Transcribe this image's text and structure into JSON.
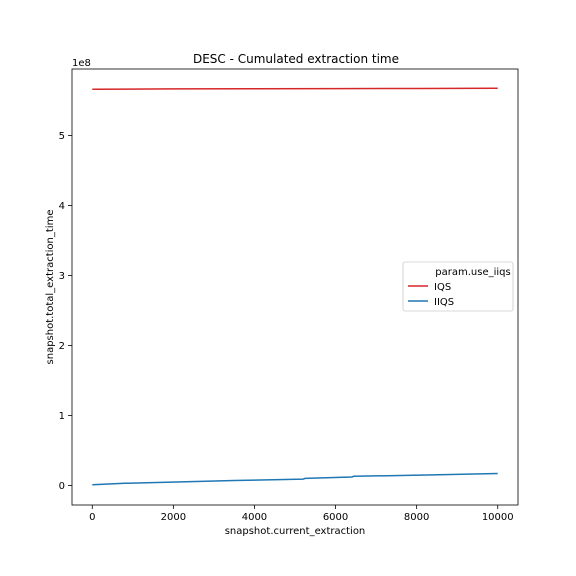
{
  "chart_data": {
    "type": "line",
    "title": "DESC - Cumulated extraction time",
    "xlabel": "snapshot.current_extraction",
    "ylabel": "snapshot.total_extraction_time",
    "y_offset_label": "1e8",
    "xlim": [
      -500,
      10500
    ],
    "ylim": [
      -0.28,
      5.95
    ],
    "x_ticks": [
      0,
      2000,
      4000,
      6000,
      8000,
      10000
    ],
    "x_tick_labels": [
      "0",
      "2000",
      "4000",
      "6000",
      "8000",
      "10000"
    ],
    "y_ticks": [
      0,
      1,
      2,
      3,
      4,
      5
    ],
    "y_tick_labels": [
      "0",
      "1",
      "2",
      "3",
      "4",
      "5"
    ],
    "grid": false,
    "legend": {
      "title": "param.use_iiqs",
      "placement": "center-right"
    },
    "series": [
      {
        "name": "IQS",
        "color": "#d62728",
        "x": [
          0,
          2000,
          4000,
          6000,
          8000,
          10000
        ],
        "y": [
          5.66,
          5.665,
          5.667,
          5.67,
          5.672,
          5.675
        ]
      },
      {
        "name": "IIQS",
        "color": "#1f77b4",
        "x": [
          0,
          800,
          2200,
          3500,
          5200,
          5250,
          6400,
          6450,
          8400,
          10000
        ],
        "y": [
          0.01,
          0.03,
          0.05,
          0.07,
          0.09,
          0.1,
          0.12,
          0.13,
          0.15,
          0.17
        ]
      }
    ]
  }
}
